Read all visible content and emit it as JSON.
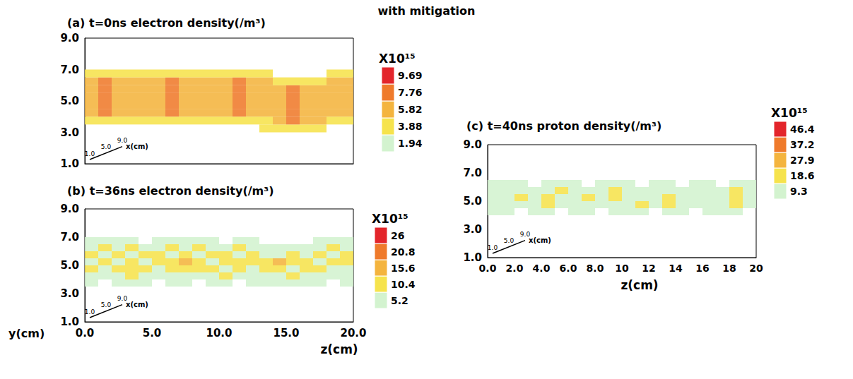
{
  "title": "with mitigation",
  "chart_data": [
    {
      "type": "heatmap",
      "title": "(a) t=0ns electron density(/m³)",
      "tick_labels": "y",
      "zlim": [
        0,
        20
      ],
      "ylim": [
        1,
        9
      ],
      "yticks": [
        {
          "value": 1,
          "label": "1.0"
        },
        {
          "value": 3,
          "label": "3.0"
        },
        {
          "value": 5,
          "label": "5.0"
        },
        {
          "value": 7,
          "label": "7.0"
        },
        {
          "value": 9,
          "label": "9.0"
        }
      ],
      "xlim": [
        1,
        9
      ],
      "xticks": [
        {
          "value": 1,
          "label": "1.0"
        },
        {
          "value": 5,
          "label": "5.0"
        },
        {
          "value": 9,
          "label": "9.0"
        }
      ],
      "xlabel": "x(cm)",
      "z": [
        0.5,
        1.5,
        2.5,
        3.5,
        4.5,
        5.5,
        6.5,
        7.5,
        8.5,
        9.5,
        10.5,
        11.5,
        12.5,
        13.5,
        14.5,
        15.5,
        16.5,
        17.5,
        18.5,
        19.5
      ],
      "y": [
        3.25,
        3.75,
        4.25,
        4.75,
        5.25,
        5.75,
        6.25,
        6.75
      ],
      "values": [
        [
          null,
          null,
          null,
          null,
          null,
          null,
          null,
          null,
          null,
          null,
          null,
          null,
          null,
          4.5,
          4.6,
          4.9,
          4.6,
          4.5,
          null,
          null
        ],
        [
          4.7,
          5.1,
          4.9,
          4.6,
          4.6,
          4.8,
          5.2,
          4.9,
          4.6,
          4.5,
          4.7,
          5.1,
          4.8,
          4.6,
          6.2,
          7.8,
          6.6,
          6.0,
          4.6,
          4.6
        ],
        [
          6.3,
          8.0,
          6.9,
          6.2,
          6.1,
          6.6,
          8.1,
          7.0,
          6.2,
          6.0,
          6.4,
          8.0,
          7.0,
          6.1,
          6.6,
          7.9,
          6.9,
          6.1,
          6.0,
          6.3
        ],
        [
          6.5,
          8.2,
          7.0,
          6.3,
          6.2,
          6.8,
          8.3,
          7.1,
          6.3,
          6.1,
          6.6,
          8.2,
          7.2,
          6.3,
          6.8,
          8.1,
          7.0,
          6.2,
          6.1,
          6.4
        ],
        [
          6.5,
          8.2,
          7.0,
          6.3,
          6.2,
          6.8,
          8.3,
          7.1,
          6.3,
          6.1,
          6.6,
          8.2,
          7.2,
          6.3,
          6.8,
          8.1,
          7.0,
          6.2,
          6.1,
          6.4
        ],
        [
          6.5,
          8.2,
          7.0,
          6.3,
          6.2,
          6.8,
          8.3,
          7.1,
          6.3,
          6.1,
          6.6,
          8.2,
          7.2,
          6.3,
          6.8,
          8.1,
          7.0,
          6.2,
          6.1,
          6.4
        ],
        [
          6.2,
          7.9,
          6.8,
          6.1,
          6.0,
          6.5,
          8.0,
          6.9,
          6.1,
          5.9,
          6.3,
          7.9,
          6.9,
          6.0,
          5.0,
          4.9,
          4.7,
          4.6,
          6.0,
          6.2
        ],
        [
          4.6,
          5.0,
          4.8,
          4.5,
          4.5,
          4.7,
          5.1,
          4.8,
          4.5,
          4.4,
          4.6,
          5.0,
          4.7,
          4.4,
          null,
          null,
          null,
          null,
          4.3,
          4.4
        ]
      ],
      "colorbar": {
        "label": "X10¹⁵",
        "ticks": [
          1.94,
          3.88,
          5.82,
          7.76,
          9.69
        ],
        "colors": [
          "#d3f3cf",
          "#f6e34c",
          "#f4b43e",
          "#ef7a2b",
          "#e3252b"
        ]
      }
    },
    {
      "type": "heatmap",
      "title": "(b) t=36ns electron density(/m³)",
      "zlim": [
        0,
        20
      ],
      "zticks": [
        {
          "value": 0,
          "label": "0.0"
        },
        {
          "value": 5,
          "label": "5.0"
        },
        {
          "value": 10,
          "label": "10.0"
        },
        {
          "value": 15,
          "label": "15.0"
        },
        {
          "value": 20,
          "label": "20.0"
        }
      ],
      "zlabel": "z(cm)",
      "ylim": [
        1,
        9
      ],
      "yticks": [
        {
          "value": 1,
          "label": "1.0"
        },
        {
          "value": 3,
          "label": "3.0"
        },
        {
          "value": 5,
          "label": "5.0"
        },
        {
          "value": 7,
          "label": "7.0"
        },
        {
          "value": 9,
          "label": "9.0"
        }
      ],
      "ylabel": "y(cm)",
      "xlim": [
        1,
        9
      ],
      "xticks": [
        {
          "value": 1,
          "label": "1.0"
        },
        {
          "value": 5,
          "label": "5.0"
        },
        {
          "value": 9,
          "label": "9.0"
        }
      ],
      "xlabel": "x(cm)",
      "z": [
        0.5,
        1.5,
        2.5,
        3.5,
        4.5,
        5.5,
        6.5,
        7.5,
        8.5,
        9.5,
        10.5,
        11.5,
        12.5,
        13.5,
        14.5,
        15.5,
        16.5,
        17.5,
        18.5,
        19.5
      ],
      "y": [
        3.75,
        4.25,
        4.75,
        5.25,
        5.75,
        6.25,
        6.75
      ],
      "values": [
        [
          6.2,
          null,
          6.5,
          6.0,
          6.3,
          null,
          6.1,
          6.4,
          null,
          6.2,
          6.0,
          null,
          6.3,
          6.1,
          6.6,
          6.8,
          6.4,
          6.2,
          null,
          6.0
        ],
        [
          8.2,
          9.0,
          8.6,
          10.8,
          8.4,
          8.9,
          9.3,
          8.1,
          9.7,
          8.5,
          10.6,
          8.8,
          9.4,
          8.3,
          9.9,
          11.3,
          8.7,
          9.1,
          8.4,
          8.9
        ],
        [
          10.7,
          9.3,
          11.9,
          10.4,
          12.6,
          9.7,
          12.2,
          10.9,
          12.8,
          11.2,
          9.6,
          12.3,
          10.1,
          11.5,
          12.4,
          9.8,
          10.7,
          12.9,
          10.3,
          9.6
        ],
        [
          9.6,
          12.4,
          10.3,
          11.7,
          9.2,
          11.4,
          13.1,
          16.2,
          10.5,
          9.9,
          12.7,
          10.8,
          11.3,
          12.9,
          16.4,
          10.6,
          12.1,
          9.8,
          11.9,
          12.5
        ],
        [
          11.0,
          9.4,
          12.5,
          9.8,
          11.6,
          12.8,
          10.1,
          13.4,
          9.6,
          12.2,
          11.1,
          9.7,
          12.6,
          10.2,
          9.5,
          11.8,
          9.9,
          12.3,
          9.4,
          10.8
        ],
        [
          8.5,
          11.2,
          9.0,
          12.1,
          8.8,
          9.5,
          11.8,
          9.2,
          10.9,
          8.7,
          9.4,
          12.0,
          9.1,
          8.6,
          7.2,
          6.8,
          7.0,
          8.9,
          11.5,
          9.3
        ],
        [
          6.5,
          6.0,
          6.8,
          6.2,
          null,
          6.4,
          6.0,
          6.6,
          6.1,
          6.3,
          null,
          6.2,
          6.0,
          null,
          null,
          null,
          null,
          6.1,
          6.4,
          6.3
        ]
      ],
      "colorbar": {
        "label": "X10¹⁵",
        "ticks": [
          5.2,
          10.4,
          15.6,
          20.8,
          26.0
        ],
        "colors": [
          "#d3f3cf",
          "#f6e34c",
          "#f4b43e",
          "#ef7a2b",
          "#e3252b"
        ]
      }
    },
    {
      "type": "heatmap",
      "title": "(c) t=40ns proton density(/m³)",
      "zlim": [
        0,
        20
      ],
      "zticks": [
        {
          "value": 0,
          "label": "0.0"
        },
        {
          "value": 2,
          "label": "2.0"
        },
        {
          "value": 4,
          "label": "4.0"
        },
        {
          "value": 6,
          "label": "6.0"
        },
        {
          "value": 8,
          "label": "8.0"
        },
        10,
        12,
        14,
        16,
        18,
        20
      ],
      "zlabel": "z(cm)",
      "ylim": [
        1,
        9
      ],
      "yticks": [
        {
          "value": 1,
          "label": "1.0"
        },
        {
          "value": 3,
          "label": "3.0"
        },
        {
          "value": 5,
          "label": "5.0"
        },
        {
          "value": 7,
          "label": "7.0"
        },
        {
          "value": 9,
          "label": "9.0"
        }
      ],
      "xlim": [
        1,
        9
      ],
      "xticks": [
        {
          "value": 1,
          "label": "1.0"
        },
        {
          "value": 5,
          "label": "5.0"
        },
        {
          "value": 9,
          "label": "9.0"
        }
      ],
      "xlabel": "x(cm)",
      "z": [
        0.5,
        1.5,
        2.5,
        3.5,
        4.5,
        5.5,
        6.5,
        7.5,
        8.5,
        9.5,
        10.5,
        11.5,
        12.5,
        13.5,
        14.5,
        15.5,
        16.5,
        17.5,
        18.5,
        19.5
      ],
      "y": [
        4.25,
        4.75,
        5.25,
        5.75,
        6.25
      ],
      "values": [
        [
          10.3,
          11.2,
          null,
          10.7,
          11.4,
          null,
          10.9,
          10.5,
          null,
          11.0,
          10.2,
          11.6,
          null,
          10.8,
          11.3,
          null,
          10.6,
          11.1,
          10.4,
          null
        ],
        [
          12.1,
          13.5,
          12.8,
          14.0,
          20.1,
          12.6,
          14.6,
          12.3,
          13.9,
          12.5,
          13.2,
          19.7,
          12.4,
          20.3,
          13.7,
          12.9,
          12.2,
          13.4,
          21.1,
          14.5
        ],
        [
          13.4,
          12.6,
          19.8,
          13.1,
          21.2,
          13.7,
          12.9,
          19.5,
          13.3,
          21.0,
          14.1,
          12.8,
          13.6,
          21.4,
          13.0,
          12.5,
          14.3,
          13.8,
          19.9,
          12.7
        ],
        [
          12.5,
          14.1,
          13.2,
          12.0,
          15.3,
          20.5,
          13.1,
          14.4,
          12.7,
          19.6,
          13.5,
          12.2,
          14.8,
          13.9,
          12.4,
          13.6,
          12.9,
          14.2,
          20.8,
          13.0
        ],
        [
          11.0,
          10.2,
          12.1,
          null,
          10.8,
          11.5,
          10.1,
          null,
          11.3,
          10.6,
          12.0,
          null,
          10.4,
          11.2,
          null,
          10.9,
          11.7,
          null,
          10.5,
          11.1
        ]
      ],
      "colorbar": {
        "label": "X10¹⁵",
        "ticks": [
          9.3,
          18.6,
          27.9,
          37.2,
          46.4
        ],
        "colors": [
          "#d3f3cf",
          "#f6e34c",
          "#f4b43e",
          "#ef7a2b",
          "#e3252b"
        ]
      }
    }
  ]
}
